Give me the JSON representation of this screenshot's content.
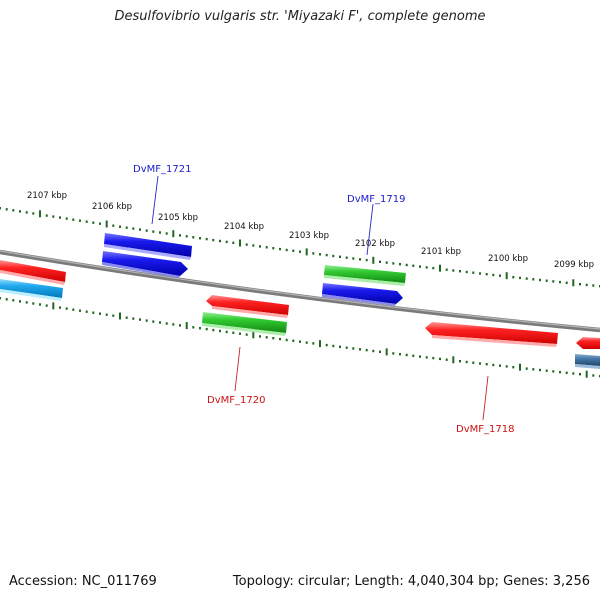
{
  "title": "Desulfovibrio vulgaris str. 'Miyazaki F', complete genome",
  "footer": {
    "accession": "Accession: NC_011769",
    "info": "Topology: circular; Length: 4,040,304 bp; Genes: 3,256"
  },
  "scale_labels": [
    "2107 kbp",
    "2106 kbp",
    "2105 kbp",
    "2104 kbp",
    "2103 kbp",
    "2102 kbp",
    "2101 kbp",
    "2100 kbp",
    "2099 kbp"
  ],
  "gene_labels": {
    "g1721": "DvMF_1721",
    "g1719": "DvMF_1719",
    "g1720": "DvMF_1720",
    "g1718": "DvMF_1718"
  },
  "colors": {
    "red": "#ee1111",
    "blue": "#1111dd",
    "green": "#22bb22",
    "cyan": "#22aaee",
    "steel": "#4477aa",
    "label_blue": "#1a1acc",
    "label_red": "#cc1111",
    "tick_green": "#226622",
    "backbone": "#808080"
  }
}
